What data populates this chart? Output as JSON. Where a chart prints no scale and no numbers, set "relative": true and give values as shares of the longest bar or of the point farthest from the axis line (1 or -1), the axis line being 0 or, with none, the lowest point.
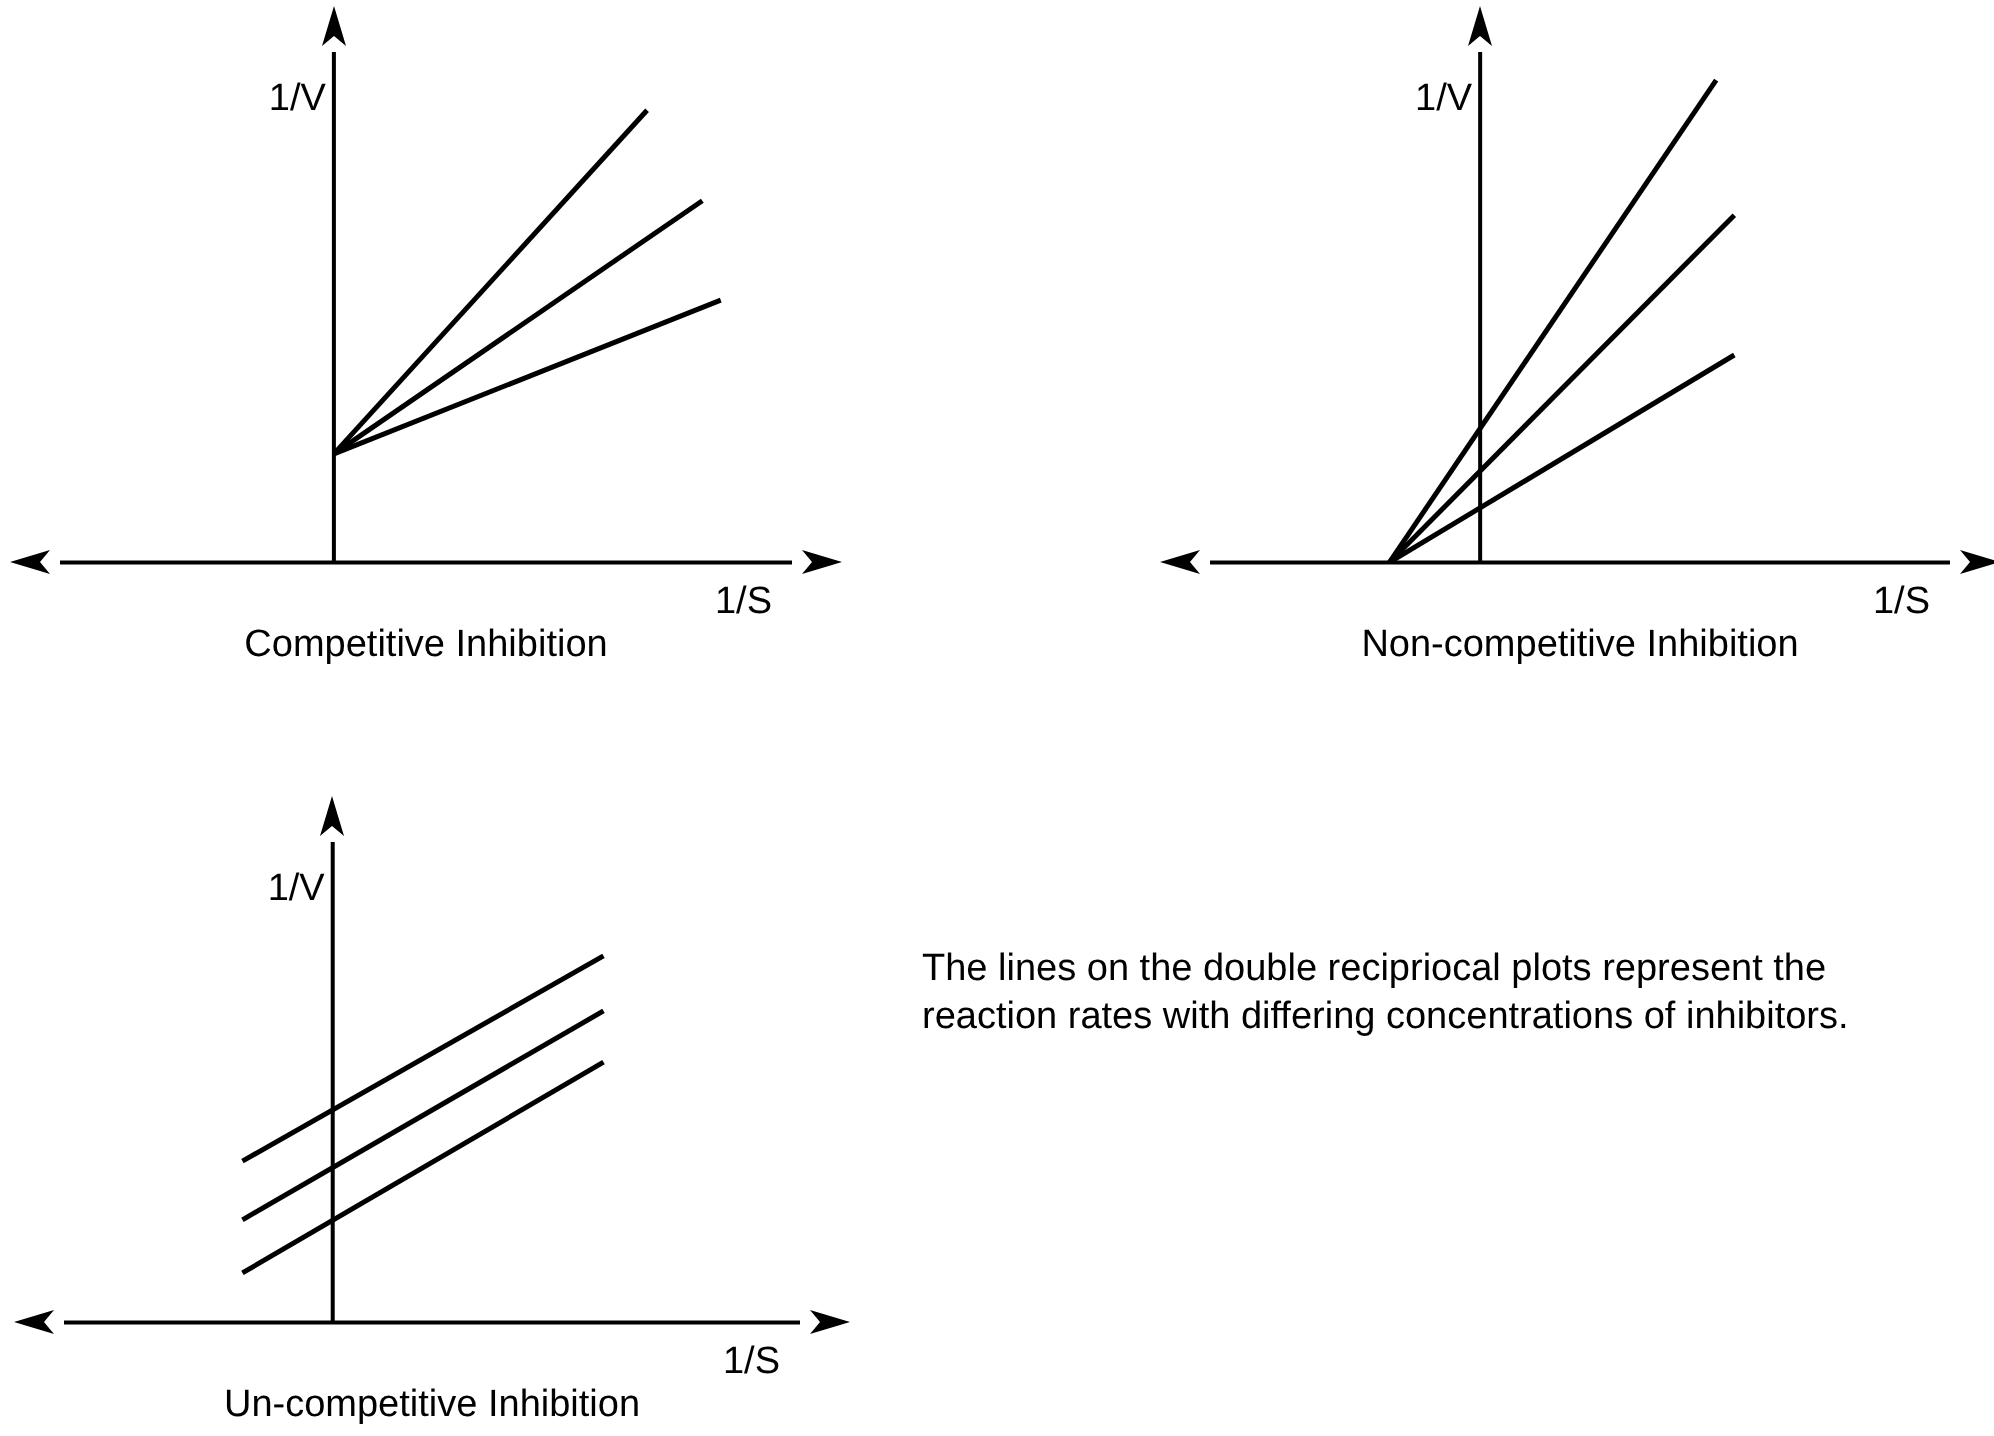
{
  "chart_data": [
    {
      "type": "line",
      "title": "Competitive Inhibition",
      "xlabel": "1/S",
      "ylabel": "1/V",
      "relative": true,
      "legend": false,
      "marker": "none",
      "line_style": "solid",
      "categories": [
        null,
        null,
        null,
        null,
        null,
        null,
        null,
        null,
        null,
        null,
        null,
        null,
        null,
        null,
        null,
        null,
        null,
        null,
        null,
        null,
        null,
        null,
        null,
        null,
        null,
        null,
        null,
        null,
        null,
        null,
        null,
        null,
        null,
        null,
        null,
        null,
        null,
        null,
        null
      ],
      "series": [
        {
          "color": "#000000",
          "values": [
            null,
            null,
            null,
            null,
            null,
            null,
            null,
            null,
            null,
            null,
            null,
            null,
            null,
            null,
            0.24,
            null,
            null,
            null,
            null,
            null,
            null,
            null,
            null,
            null,
            null,
            null,
            null,
            null,
            null,
            null,
            null,
            1,
            null,
            null,
            null,
            null,
            null,
            null,
            null
          ]
        },
        {
          "color": "#000000",
          "values": [
            null,
            null,
            null,
            null,
            null,
            null,
            null,
            null,
            null,
            null,
            null,
            null,
            null,
            null,
            0.24,
            null,
            null,
            null,
            null,
            null,
            null,
            null,
            null,
            null,
            null,
            null,
            null,
            null,
            null,
            null,
            null,
            null,
            null,
            null,
            0.8,
            null,
            null,
            null,
            null
          ]
        },
        {
          "color": "#000000",
          "values": [
            null,
            null,
            null,
            null,
            null,
            null,
            null,
            null,
            null,
            null,
            null,
            null,
            null,
            null,
            0.24,
            null,
            null,
            null,
            null,
            null,
            null,
            null,
            null,
            null,
            null,
            null,
            null,
            null,
            null,
            null,
            null,
            null,
            null,
            null,
            null,
            0.58,
            null,
            null,
            null
          ]
        }
      ]
    },
    {
      "type": "line",
      "title": "Non-competitive Inhibition",
      "xlabel": "1/S",
      "ylabel": "1/V",
      "relative": true,
      "legend": false,
      "marker": "none",
      "line_style": "solid",
      "categories": [
        null,
        null,
        null,
        null,
        null,
        null,
        null,
        null,
        null,
        null,
        null,
        null,
        null,
        null,
        null,
        null,
        null,
        null,
        null,
        null,
        null,
        null,
        null,
        null,
        null,
        null,
        null,
        null,
        null,
        null,
        null,
        null,
        null,
        null,
        null,
        null,
        null,
        null,
        null,
        null
      ],
      "series": [
        {
          "color": "#000000",
          "values": [
            null,
            null,
            null,
            null,
            null,
            null,
            null,
            null,
            null,
            0,
            null,
            null,
            null,
            null,
            null,
            null,
            null,
            null,
            null,
            null,
            null,
            null,
            null,
            null,
            null,
            null,
            null,
            1,
            null,
            null,
            null,
            null,
            null,
            null,
            null,
            null,
            null,
            null,
            null,
            null
          ]
        },
        {
          "color": "#000000",
          "values": [
            null,
            null,
            null,
            null,
            null,
            null,
            null,
            null,
            null,
            0,
            null,
            null,
            null,
            null,
            null,
            null,
            null,
            null,
            null,
            null,
            null,
            null,
            null,
            null,
            null,
            null,
            null,
            null,
            0.72,
            null,
            null,
            null,
            null,
            null,
            null,
            null,
            null,
            null,
            null,
            null
          ]
        },
        {
          "color": "#000000",
          "values": [
            null,
            null,
            null,
            null,
            null,
            null,
            null,
            null,
            null,
            0,
            null,
            null,
            null,
            null,
            null,
            null,
            null,
            null,
            null,
            null,
            null,
            null,
            null,
            null,
            null,
            null,
            null,
            null,
            0.43,
            null,
            null,
            null,
            null,
            null,
            null,
            null,
            null,
            null,
            null,
            null
          ]
        }
      ]
    },
    {
      "type": "line",
      "title": "Un-competitive Inhibition",
      "xlabel": "1/S",
      "ylabel": "1/V",
      "relative": true,
      "legend": false,
      "marker": "none",
      "line_style": "solid",
      "categories": [
        null,
        null,
        null,
        null,
        null,
        null,
        null,
        null,
        null,
        null,
        null,
        null,
        null,
        null,
        null,
        null,
        null,
        null,
        null,
        null,
        null,
        null,
        null,
        null,
        null,
        null,
        null,
        null,
        null,
        null,
        null,
        null,
        null,
        null,
        null,
        null,
        null,
        null,
        null,
        null
      ],
      "series": [
        {
          "color": "#000000",
          "values": [
            null,
            null,
            null,
            null,
            null,
            null,
            null,
            null,
            null,
            0.44,
            null,
            null,
            null,
            null,
            null,
            null,
            null,
            null,
            null,
            null,
            null,
            null,
            null,
            null,
            null,
            null,
            null,
            null,
            null,
            1,
            null,
            null,
            null,
            null,
            null,
            null,
            null,
            null,
            null,
            null
          ]
        },
        {
          "color": "#000000",
          "values": [
            null,
            null,
            null,
            null,
            null,
            null,
            null,
            null,
            null,
            0.28,
            null,
            null,
            null,
            null,
            null,
            null,
            null,
            null,
            null,
            null,
            null,
            null,
            null,
            null,
            null,
            null,
            null,
            null,
            null,
            0.85,
            null,
            null,
            null,
            null,
            null,
            null,
            null,
            null,
            null,
            null
          ]
        },
        {
          "color": "#000000",
          "values": [
            null,
            null,
            null,
            null,
            null,
            null,
            null,
            null,
            null,
            0.135,
            null,
            null,
            null,
            null,
            null,
            null,
            null,
            null,
            null,
            null,
            null,
            null,
            null,
            null,
            null,
            null,
            null,
            null,
            null,
            0.71,
            null,
            null,
            null,
            null,
            null,
            null,
            null,
            null,
            null,
            null
          ]
        }
      ]
    },
    {
      "type": "other",
      "annotations": [
        "The lines on the double recipriocal plots represent the reaction rates with  differing concentrations of inhibitors."
      ]
    }
  ]
}
